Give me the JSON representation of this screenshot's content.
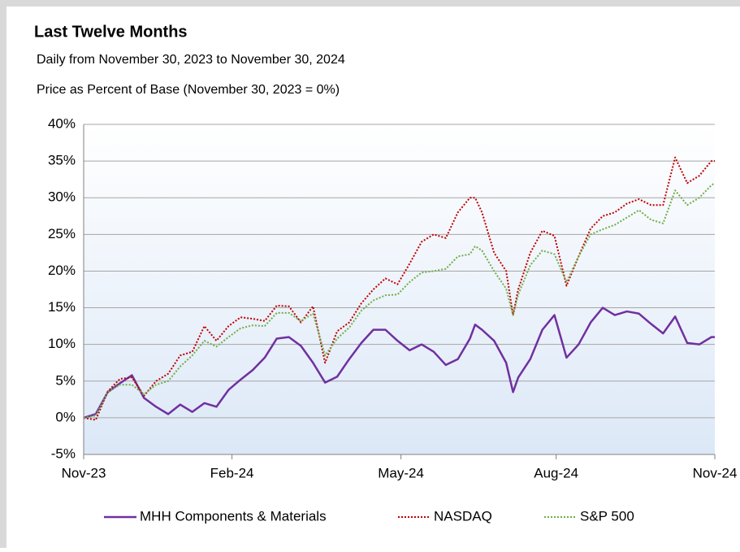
{
  "chart_data": {
    "type": "line",
    "title": "Last Twelve Months",
    "subtitle": "Daily from November 30, 2023 to November 30, 2024",
    "axis_label": "Price as Percent of Base (November 30, 2023 = 0%)",
    "x": [
      0,
      7,
      14,
      21,
      28,
      35,
      42,
      49,
      56,
      63,
      70,
      77,
      84,
      91,
      98,
      105,
      112,
      119,
      126,
      133,
      140,
      147,
      154,
      161,
      168,
      175,
      182,
      189,
      196,
      203,
      210,
      217,
      224,
      227,
      231,
      238,
      245,
      249,
      252,
      259,
      266,
      273,
      280,
      287,
      294,
      301,
      308,
      315,
      322,
      329,
      336,
      343,
      350,
      357,
      364,
      366
    ],
    "xlim": [
      0,
      366
    ],
    "xticks": [
      {
        "value": 0,
        "label": "Nov-23"
      },
      {
        "value": 86,
        "label": "Feb-24"
      },
      {
        "value": 184,
        "label": "May-24"
      },
      {
        "value": 274,
        "label": "Aug-24"
      },
      {
        "value": 366,
        "label": "Nov-24"
      }
    ],
    "ylim": [
      -5,
      40
    ],
    "yticks": [
      {
        "value": -5,
        "label": "-5%"
      },
      {
        "value": 0,
        "label": "0%"
      },
      {
        "value": 5,
        "label": "5%"
      },
      {
        "value": 10,
        "label": "10%"
      },
      {
        "value": 15,
        "label": "15%"
      },
      {
        "value": 20,
        "label": "20%"
      },
      {
        "value": 25,
        "label": "25%"
      },
      {
        "value": 30,
        "label": "30%"
      },
      {
        "value": 35,
        "label": "35%"
      },
      {
        "value": 40,
        "label": "40%"
      }
    ],
    "grid": true,
    "legend": "bottom",
    "series": [
      {
        "name": "MHH Components & Materials",
        "color": "#7030a0",
        "dash": "solid",
        "values": [
          0,
          0.5,
          3.5,
          4.7,
          5.8,
          2.7,
          1.5,
          0.5,
          1.8,
          0.8,
          2,
          1.5,
          3.8,
          5.2,
          6.5,
          8.2,
          10.8,
          11,
          9.8,
          7.5,
          4.8,
          5.6,
          8,
          10.2,
          12,
          12,
          10.5,
          9.2,
          10,
          9,
          7.2,
          8,
          10.8,
          12.7,
          12,
          10.5,
          7.5,
          3.5,
          5.5,
          8,
          12,
          14,
          8.2,
          10,
          13,
          15,
          14,
          14.5,
          14.2,
          12.8,
          11.5,
          13.8,
          10.2,
          10,
          11,
          11
        ]
      },
      {
        "name": "NASDAQ",
        "color": "#c00000",
        "dash": "dotted",
        "values": [
          0,
          -0.3,
          3.6,
          5.3,
          5.5,
          3,
          5,
          6,
          8.5,
          9,
          12.5,
          10.5,
          12.5,
          13.7,
          13.5,
          13.2,
          15.3,
          15.2,
          13,
          15.2,
          7.5,
          11.8,
          13,
          15.6,
          17.5,
          19,
          18.2,
          21,
          24,
          25,
          24.5,
          28,
          30,
          30,
          28,
          22.5,
          20,
          14,
          17.5,
          22.5,
          25.5,
          24.8,
          18,
          22,
          25.8,
          27.5,
          28,
          29.2,
          29.8,
          29,
          29,
          35.5,
          32,
          33,
          35,
          35
        ]
      },
      {
        "name": "S&P 500",
        "color": "#70ad47",
        "dash": "dotted",
        "values": [
          0,
          0.3,
          3.5,
          4.5,
          4.5,
          3.2,
          4.5,
          5,
          7,
          8.5,
          10.5,
          9.7,
          11,
          12.2,
          12.6,
          12.5,
          14.3,
          14.3,
          13.2,
          14.2,
          8.5,
          10.8,
          12.3,
          14.6,
          16,
          16.7,
          16.8,
          18.5,
          19.8,
          20,
          20.3,
          22,
          22.3,
          23.4,
          22.8,
          20,
          17.6,
          14,
          16.8,
          20.8,
          22.8,
          22.3,
          18.5,
          22,
          25,
          25.7,
          26.3,
          27.3,
          28.3,
          27,
          26.5,
          31,
          29,
          30,
          31.7,
          32
        ]
      }
    ]
  }
}
